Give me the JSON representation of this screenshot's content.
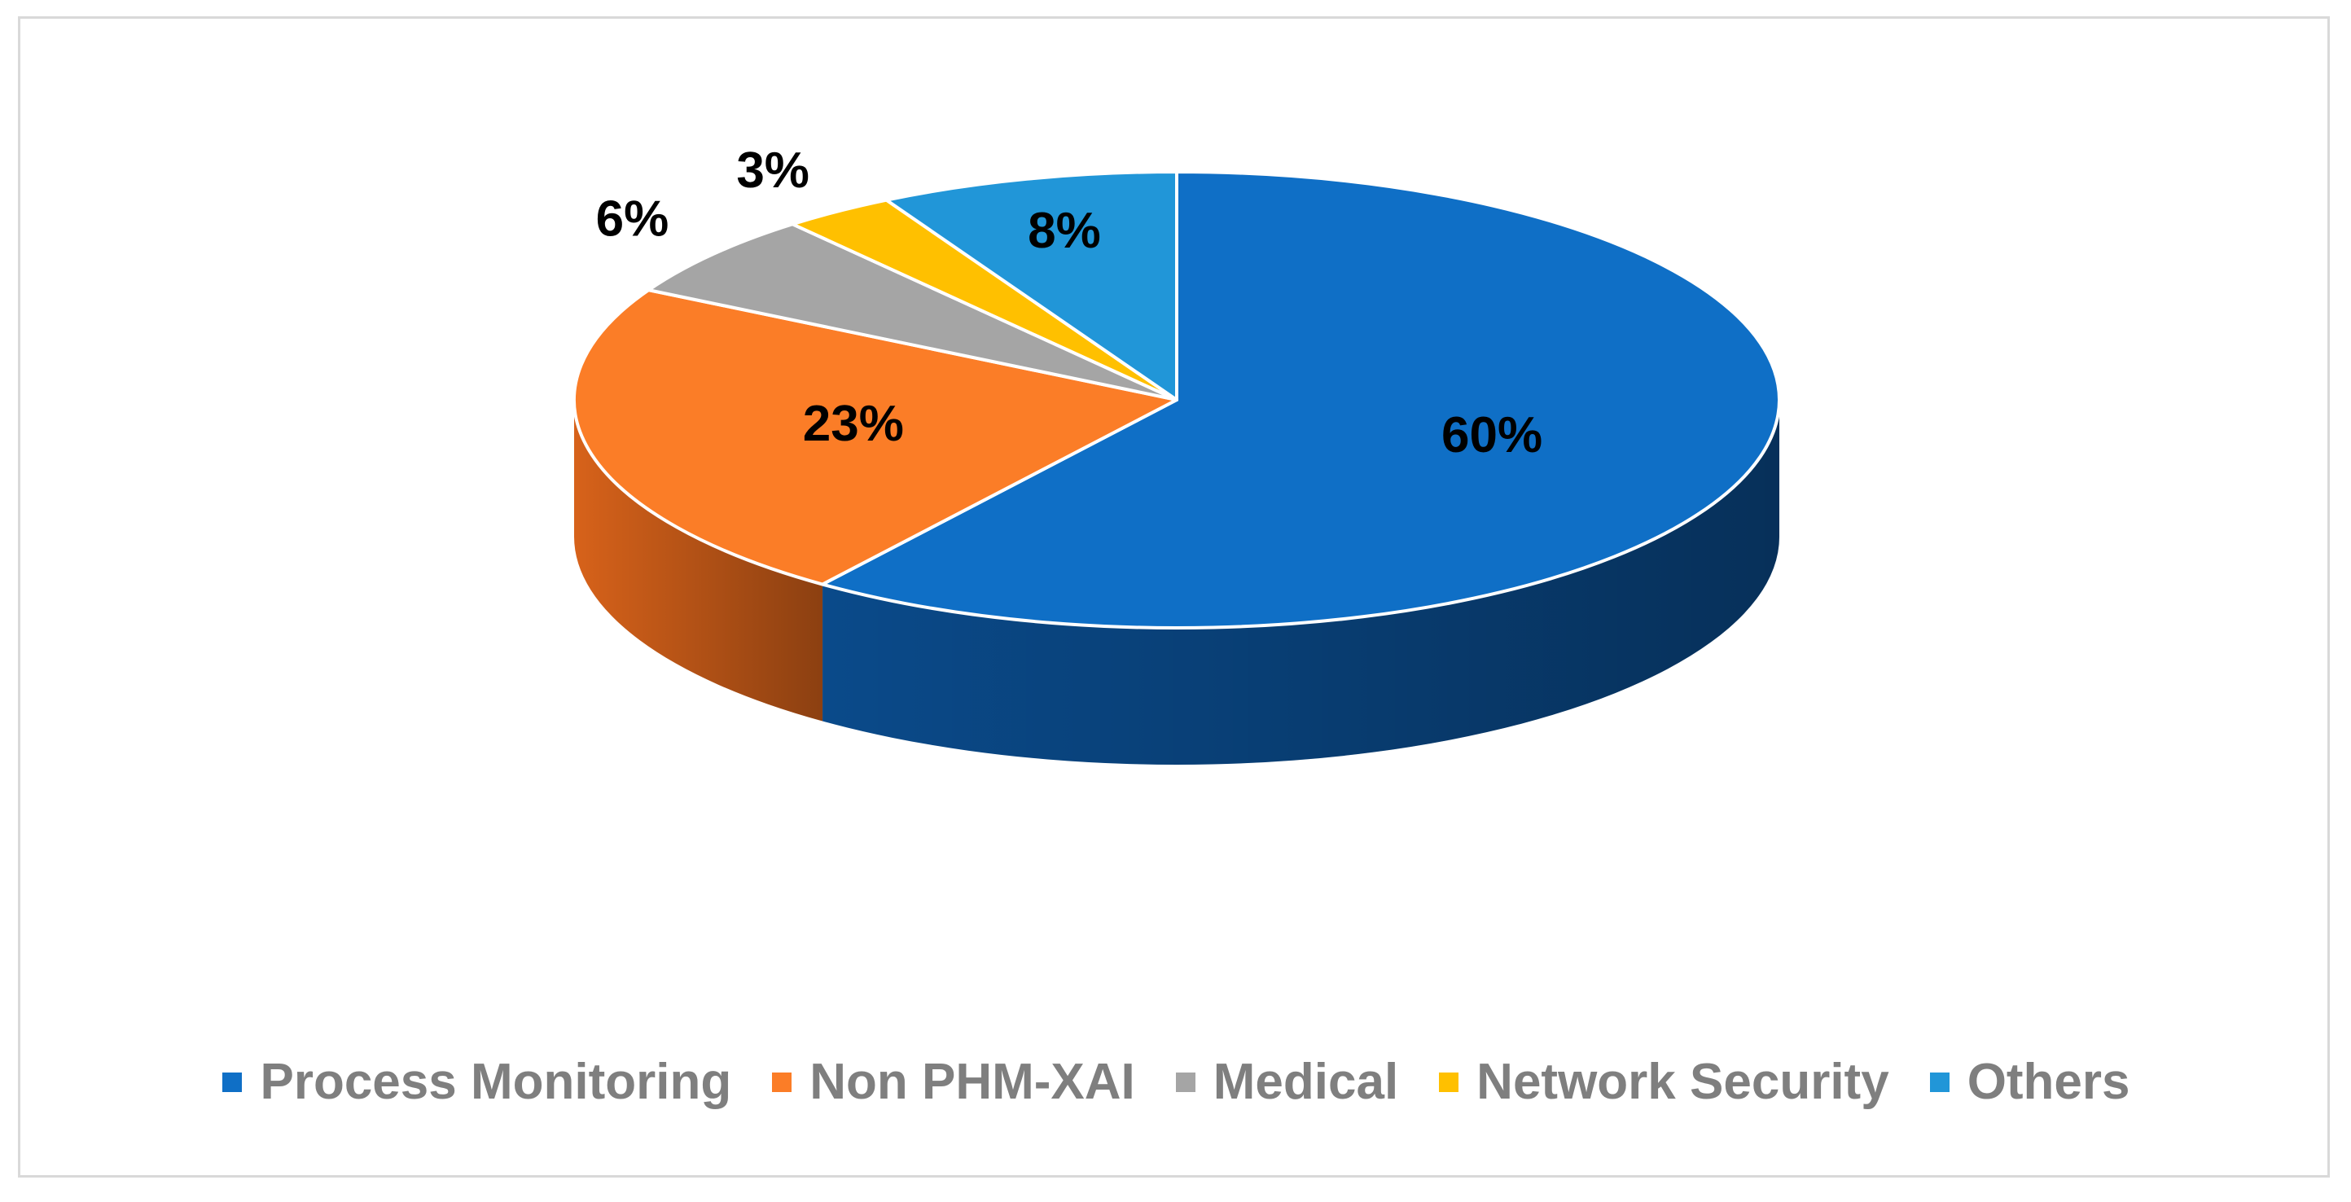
{
  "chart_data": {
    "type": "pie",
    "categories": [
      "Process Monitoring",
      "Non PHM-XAI",
      "Medical",
      "Network Security",
      "Others"
    ],
    "values": [
      60,
      23,
      6,
      3,
      8
    ],
    "data_labels": [
      "60%",
      "23%",
      "6%",
      "3%",
      "8%"
    ],
    "colors": [
      "#0F6FC6",
      "#FB7D27",
      "#A5A5A5",
      "#FFC000",
      "#2196D8"
    ],
    "side_colors": [
      "#0A4A8A",
      "#D7621A",
      "#7F7F7F",
      "#C99700",
      "#1674AA"
    ],
    "style": "3d",
    "legend": {
      "position": "bottom",
      "entries": [
        {
          "label": "Process Monitoring",
          "color": "#0F6FC6"
        },
        {
          "label": "Non PHM-XAI",
          "color": "#FB7D27"
        },
        {
          "label": "Medical",
          "color": "#A5A5A5"
        },
        {
          "label": "Network Security",
          "color": "#FFC000"
        },
        {
          "label": "Others",
          "color": "#2196D8"
        }
      ]
    }
  }
}
